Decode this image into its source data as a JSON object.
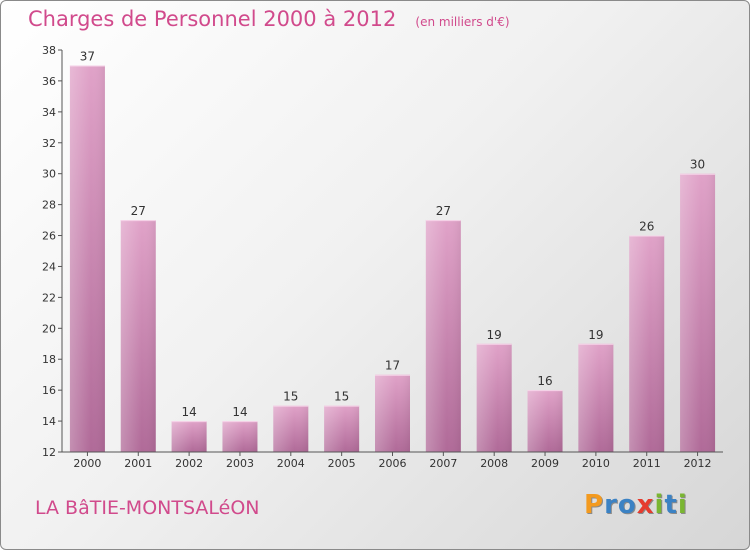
{
  "header": {
    "title": "Charges de Personnel 2000 à 2012",
    "unit": "(en milliers d'€)"
  },
  "footer": {
    "commune": "LA BâTIE-MONTSALéON",
    "logo_letters": [
      "P",
      "r",
      "o",
      "x",
      "i",
      "t",
      "i"
    ],
    "logo_colors": [
      "#f39a1f",
      "#3b82c4",
      "#3b82c4",
      "#e63b2e",
      "#7ab632",
      "#3b82c4",
      "#7ab632"
    ]
  },
  "chart_data": {
    "type": "bar",
    "title": "Charges de Personnel 2000 à 2012",
    "categories": [
      "2000",
      "2001",
      "2002",
      "2003",
      "2004",
      "2005",
      "2006",
      "2007",
      "2008",
      "2009",
      "2010",
      "2011",
      "2012"
    ],
    "values": [
      37,
      27,
      14,
      14,
      15,
      15,
      17,
      27,
      19,
      16,
      19,
      26,
      30
    ],
    "data_labels": [
      "37",
      "27",
      "14",
      "14",
      "15",
      "15",
      "17",
      "27",
      "19",
      "16",
      "19",
      "26",
      "30"
    ],
    "yticks": [
      "12",
      "14",
      "16",
      "18",
      "20",
      "22",
      "24",
      "26",
      "28",
      "30",
      "32",
      "34",
      "36",
      "38"
    ],
    "ylim": [
      12,
      38
    ],
    "xlabel": "",
    "ylabel": "",
    "grid": false,
    "bar_color": "#e0a2c8",
    "bar_color_dark": "#b06a98"
  }
}
